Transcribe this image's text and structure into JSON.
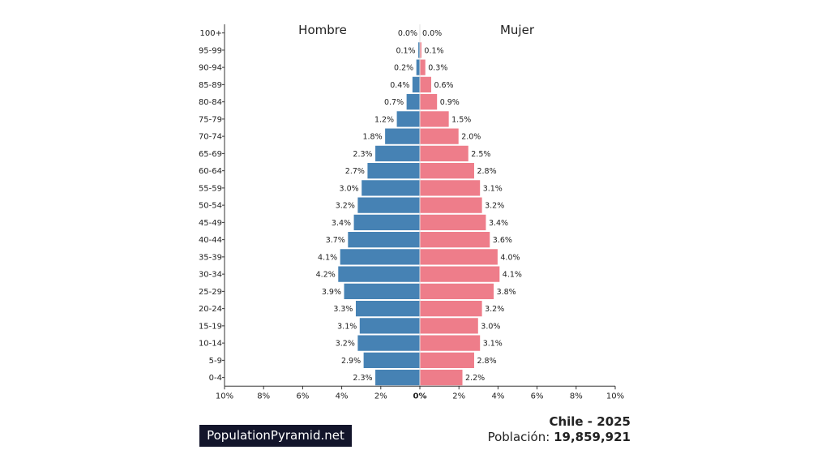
{
  "chart_data": {
    "type": "bar",
    "orientation": "horizontal-pyramid",
    "categories": [
      "0-4",
      "5-9",
      "10-14",
      "15-19",
      "20-24",
      "25-29",
      "30-34",
      "35-39",
      "40-44",
      "45-49",
      "50-54",
      "55-59",
      "60-64",
      "65-69",
      "70-74",
      "75-79",
      "80-84",
      "85-89",
      "90-94",
      "95-99",
      "100+"
    ],
    "series": [
      {
        "name": "Hombre",
        "values": [
          2.3,
          2.9,
          3.2,
          3.1,
          3.3,
          3.9,
          4.2,
          4.1,
          3.7,
          3.4,
          3.2,
          3.0,
          2.7,
          2.3,
          1.8,
          1.2,
          0.7,
          0.4,
          0.2,
          0.1,
          0.0
        ]
      },
      {
        "name": "Mujer",
        "values": [
          2.2,
          2.8,
          3.1,
          3.0,
          3.2,
          3.8,
          4.1,
          4.0,
          3.6,
          3.4,
          3.2,
          3.1,
          2.8,
          2.5,
          2.0,
          1.5,
          0.9,
          0.6,
          0.3,
          0.1,
          0.0
        ]
      }
    ],
    "xlim": [
      -10,
      10
    ],
    "xticks": [
      "10%",
      "8%",
      "6%",
      "4%",
      "2%",
      "0%",
      "2%",
      "4%",
      "6%",
      "8%",
      "10%"
    ],
    "colors": {
      "Hombre": "#4682b4",
      "Mujer": "#ee7d8a"
    }
  },
  "footer": {
    "brand": "PopulationPyramid.net",
    "country_year": "Chile - 2025",
    "population_label": "Población:",
    "population_value": "19,859,921"
  }
}
